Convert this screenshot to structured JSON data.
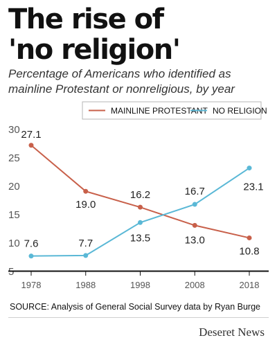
{
  "title_lines": [
    "The rise of",
    "'no religion'"
  ],
  "subtitle": "Percentage of Americans who identified as mainline Protestant or nonreligious, by year",
  "source": "SOURCE: Analysis of General Social Survey data by Ryan Burge",
  "brand": "Deseret News",
  "chart_data": {
    "type": "line",
    "x": [
      "1978",
      "1988",
      "1998",
      "2008",
      "2018"
    ],
    "series": [
      {
        "name": "MAINLINE PROTESTANT",
        "color": "#c8604a",
        "values": [
          27.1,
          19.0,
          16.2,
          13.0,
          10.8
        ],
        "labels": [
          "27.1",
          "19.0",
          "16.2",
          "13.0",
          "10.8"
        ]
      },
      {
        "name": "NO RELIGION",
        "color": "#5ab8d6",
        "values": [
          7.6,
          7.7,
          13.5,
          16.7,
          23.1
        ],
        "labels": [
          "7.6",
          "7.7",
          "13.5",
          "16.7",
          "23.1"
        ]
      }
    ],
    "yticks": [
      "30",
      "25",
      "20",
      "15",
      "10",
      "5"
    ],
    "ylim": [
      5,
      30
    ],
    "grid": false,
    "legend": "top"
  }
}
